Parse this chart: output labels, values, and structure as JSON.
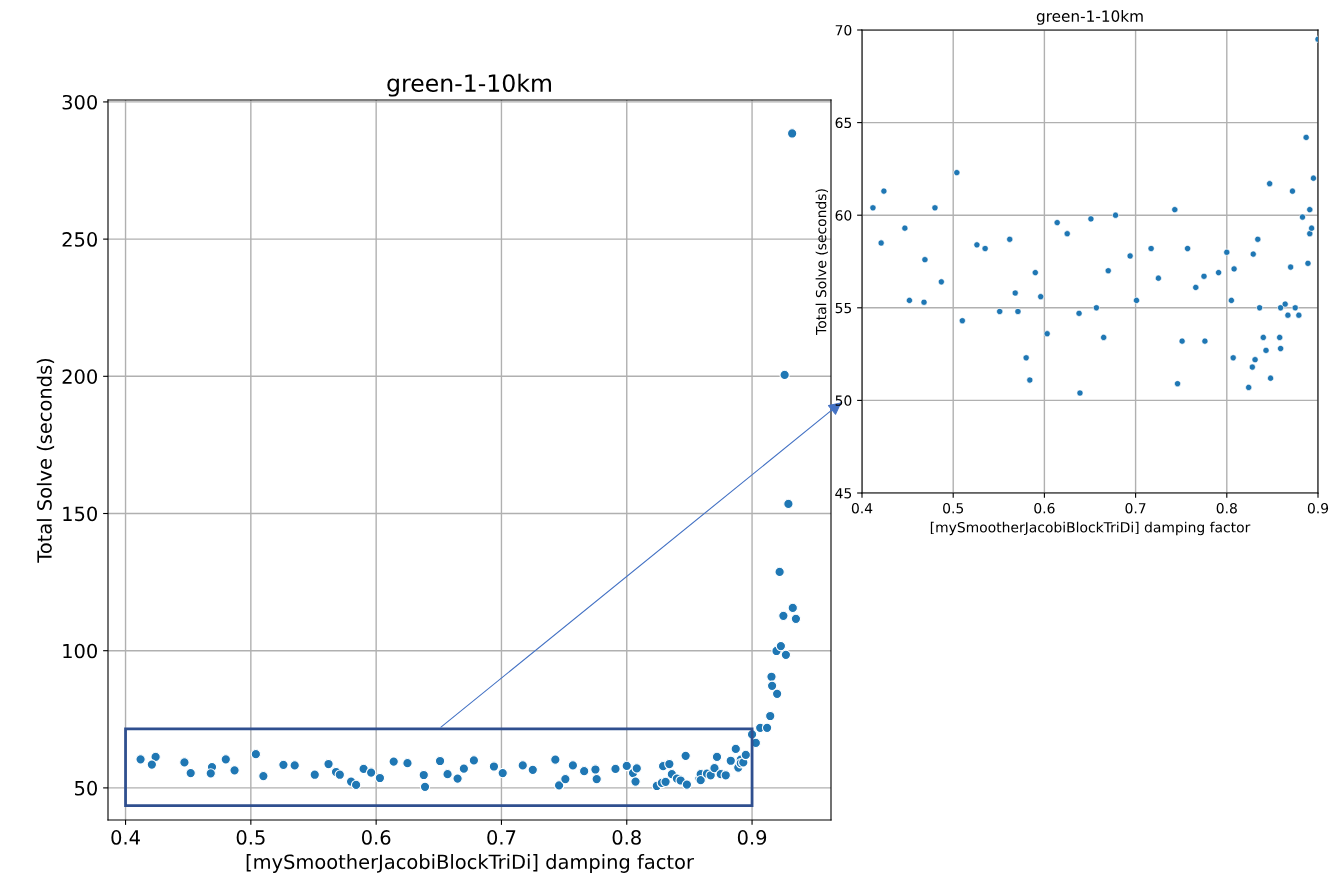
{
  "chart_data": [
    {
      "type": "scatter",
      "title": "green-1-10km",
      "xlabel": "[mySmootherJacobiBlockTriDi] damping factor",
      "ylabel": "Total Solve (seconds)",
      "color": "#1f77b4",
      "marker": "circle",
      "grid": true,
      "xlim": [
        0.386,
        0.963
      ],
      "ylim": [
        38.3,
        300.7
      ],
      "xticks": [
        0.4,
        0.5,
        0.6,
        0.7,
        0.8,
        0.9
      ],
      "yticks": [
        50,
        100,
        150,
        200,
        250,
        300
      ],
      "x": [
        0.412,
        0.424,
        0.421,
        0.447,
        0.452,
        0.469,
        0.468,
        0.48,
        0.487,
        0.504,
        0.51,
        0.526,
        0.535,
        0.551,
        0.562,
        0.568,
        0.571,
        0.58,
        0.584,
        0.59,
        0.596,
        0.603,
        0.614,
        0.625,
        0.638,
        0.639,
        0.651,
        0.657,
        0.665,
        0.67,
        0.678,
        0.694,
        0.701,
        0.717,
        0.725,
        0.743,
        0.746,
        0.751,
        0.757,
        0.766,
        0.775,
        0.776,
        0.791,
        0.8,
        0.805,
        0.808,
        0.807,
        0.824,
        0.828,
        0.829,
        0.831,
        0.834,
        0.836,
        0.84,
        0.843,
        0.847,
        0.848,
        0.858,
        0.859,
        0.859,
        0.864,
        0.867,
        0.87,
        0.872,
        0.875,
        0.879,
        0.883,
        0.887,
        0.889,
        0.891,
        0.891,
        0.893,
        0.895,
        0.9,
        0.903,
        0.9065,
        0.912,
        0.9145,
        0.9155,
        0.916,
        0.92,
        0.9195,
        0.923,
        0.927,
        0.922,
        0.925,
        0.9325,
        0.935,
        0.929,
        0.926,
        0.932
      ],
      "values": [
        60.4,
        61.3,
        58.5,
        59.3,
        55.4,
        57.6,
        55.3,
        60.4,
        56.4,
        62.3,
        54.3,
        58.4,
        58.2,
        54.8,
        58.7,
        55.8,
        54.8,
        52.3,
        51.1,
        56.9,
        55.6,
        53.6,
        59.6,
        59.0,
        54.7,
        50.4,
        59.8,
        55.0,
        53.4,
        57.0,
        60.0,
        57.8,
        55.4,
        58.2,
        56.6,
        60.3,
        50.9,
        53.2,
        58.2,
        56.1,
        56.7,
        53.2,
        56.9,
        58.0,
        55.4,
        57.1,
        52.3,
        50.7,
        51.8,
        57.9,
        52.2,
        58.7,
        55.0,
        53.4,
        52.7,
        61.7,
        51.2,
        53.4,
        55.0,
        52.8,
        55.2,
        54.6,
        57.2,
        61.3,
        55.0,
        54.6,
        59.9,
        64.2,
        57.4,
        60.3,
        59.0,
        59.3,
        62.0,
        69.5,
        66.4,
        71.9,
        71.9,
        76.2,
        90.5,
        87.2,
        84.3,
        99.9,
        101.7,
        98.5,
        128.7,
        112.7,
        115.6,
        111.6,
        153.5,
        200.5,
        288.5
      ]
    },
    {
      "type": "scatter",
      "title": "green-1-10km",
      "xlabel": "[mySmootherJacobiBlockTriDi] damping factor",
      "ylabel": "Total Solve (seconds)",
      "color": "#1f77b4",
      "marker": "circle",
      "grid": true,
      "xlim": [
        0.4,
        0.9
      ],
      "ylim": [
        45,
        70
      ],
      "xticks": [
        0.4,
        0.5,
        0.6,
        0.7,
        0.8,
        0.9
      ],
      "yticks": [
        45,
        50,
        55,
        60,
        65,
        70
      ],
      "x": [
        0.412,
        0.424,
        0.421,
        0.447,
        0.452,
        0.469,
        0.468,
        0.48,
        0.487,
        0.504,
        0.51,
        0.526,
        0.535,
        0.551,
        0.562,
        0.568,
        0.571,
        0.58,
        0.584,
        0.59,
        0.596,
        0.603,
        0.614,
        0.625,
        0.638,
        0.639,
        0.651,
        0.657,
        0.665,
        0.67,
        0.678,
        0.694,
        0.701,
        0.717,
        0.725,
        0.743,
        0.746,
        0.751,
        0.757,
        0.766,
        0.775,
        0.776,
        0.791,
        0.8,
        0.805,
        0.808,
        0.807,
        0.824,
        0.828,
        0.829,
        0.831,
        0.834,
        0.836,
        0.84,
        0.843,
        0.847,
        0.848,
        0.858,
        0.859,
        0.859,
        0.864,
        0.867,
        0.87,
        0.872,
        0.875,
        0.879,
        0.883,
        0.887,
        0.889,
        0.891,
        0.891,
        0.893,
        0.895,
        0.9
      ],
      "values": [
        60.4,
        61.3,
        58.5,
        59.3,
        55.4,
        57.6,
        55.3,
        60.4,
        56.4,
        62.3,
        54.3,
        58.4,
        58.2,
        54.8,
        58.7,
        55.8,
        54.8,
        52.3,
        51.1,
        56.9,
        55.6,
        53.6,
        59.6,
        59.0,
        54.7,
        50.4,
        59.8,
        55.0,
        53.4,
        57.0,
        60.0,
        57.8,
        55.4,
        58.2,
        56.6,
        60.3,
        50.9,
        53.2,
        58.2,
        56.1,
        56.7,
        53.2,
        56.9,
        58.0,
        55.4,
        57.1,
        52.3,
        50.7,
        51.8,
        57.9,
        52.2,
        58.7,
        55.0,
        53.4,
        52.7,
        61.7,
        51.2,
        53.4,
        55.0,
        52.8,
        55.2,
        54.6,
        57.2,
        61.3,
        55.0,
        54.6,
        59.9,
        64.2,
        57.4,
        60.3,
        59.0,
        59.3,
        62.0,
        69.5
      ]
    }
  ]
}
